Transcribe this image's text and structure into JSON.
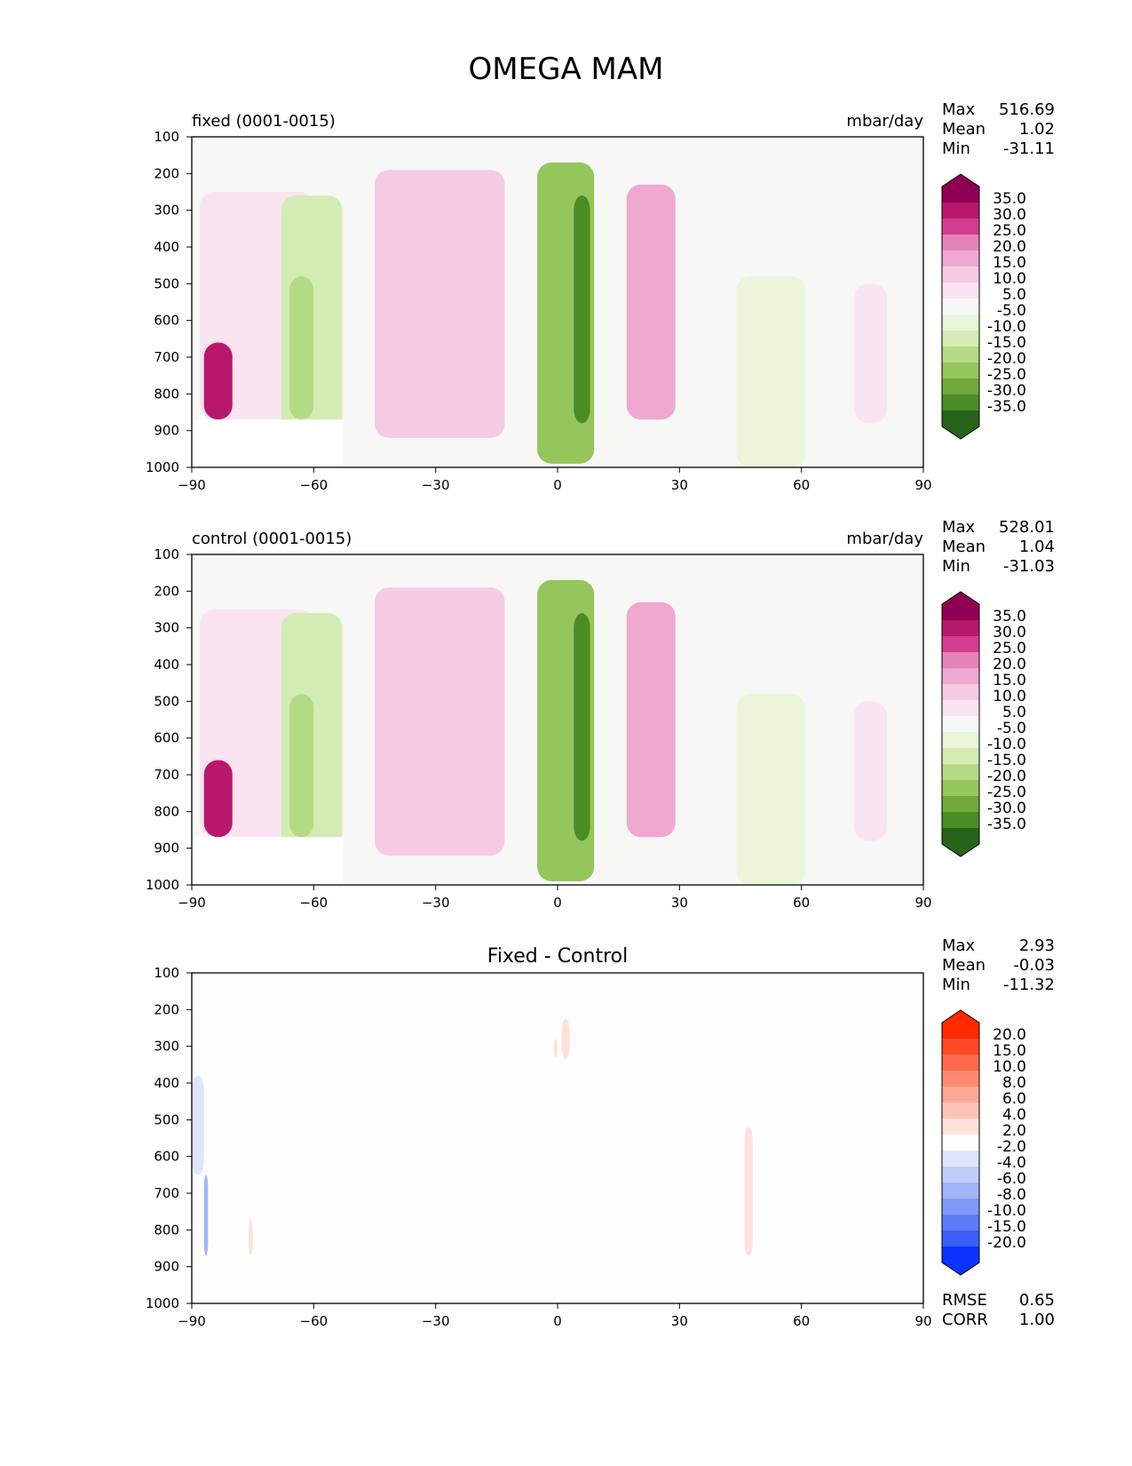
{
  "title": "OMEGA MAM",
  "chart_data": [
    {
      "type": "heatmap",
      "title_left": "fixed (0001-0015)",
      "title_right": "mbar/day",
      "title_center": "",
      "xlim": [
        -90,
        90
      ],
      "ylim": [
        1000,
        100
      ],
      "xticks": [
        "−90",
        "−60",
        "−30",
        "0",
        "30",
        "60",
        "90"
      ],
      "yticks": [
        "100",
        "200",
        "300",
        "400",
        "500",
        "600",
        "700",
        "800",
        "900",
        "1000"
      ],
      "stats": [
        {
          "label": "Max",
          "value": "516.69"
        },
        {
          "label": "Mean",
          "value": "1.02"
        },
        {
          "label": "Min",
          "value": "-31.11"
        }
      ],
      "colorbar_labels": [
        "35.0",
        "30.0",
        "25.0",
        "20.0",
        "15.0",
        "10.0",
        "5.0",
        "-5.0",
        "-10.0",
        "-15.0",
        "-20.0",
        "-25.0",
        "-30.0",
        "-35.0"
      ],
      "colorbar_colors": [
        "#8e0152",
        "#b8186b",
        "#d23d8f",
        "#e483b6",
        "#efa8d0",
        "#f6cbe4",
        "#fae4f0",
        "#f7f7f7",
        "#eaf5da",
        "#d4ecb4",
        "#b5da85",
        "#94c65c",
        "#6fa93a",
        "#4d8b26",
        "#276419"
      ],
      "features": [
        {
          "kind": "positive",
          "level": 1,
          "lon": [
            -88,
            -60
          ],
          "p": [
            250,
            870
          ]
        },
        {
          "kind": "positive",
          "level": 6,
          "lon": [
            -87,
            -80
          ],
          "p": [
            660,
            870
          ]
        },
        {
          "kind": "positive",
          "level": 2,
          "lon": [
            -45,
            -13
          ],
          "p": [
            190,
            920
          ]
        },
        {
          "kind": "positive",
          "level": 3,
          "lon": [
            17,
            29
          ],
          "p": [
            230,
            870
          ]
        },
        {
          "kind": "negative",
          "level": 2,
          "lon": [
            -68,
            -53
          ],
          "p": [
            260,
            1000
          ]
        },
        {
          "kind": "negative",
          "level": 3,
          "lon": [
            -66,
            -60
          ],
          "p": [
            480,
            870
          ]
        },
        {
          "kind": "negative",
          "level": 4,
          "lon": [
            -5,
            9
          ],
          "p": [
            170,
            990
          ]
        },
        {
          "kind": "negative",
          "level": 6,
          "lon": [
            4,
            8
          ],
          "p": [
            260,
            880
          ]
        },
        {
          "kind": "negative",
          "level": 1,
          "lon": [
            44,
            61
          ],
          "p": [
            480,
            1000
          ]
        },
        {
          "kind": "positive",
          "level": 1,
          "lon": [
            73,
            81
          ],
          "p": [
            500,
            880
          ]
        }
      ]
    },
    {
      "type": "heatmap",
      "title_left": "control (0001-0015)",
      "title_right": "mbar/day",
      "title_center": "",
      "xlim": [
        -90,
        90
      ],
      "ylim": [
        1000,
        100
      ],
      "xticks": [
        "−90",
        "−60",
        "−30",
        "0",
        "30",
        "60",
        "90"
      ],
      "yticks": [
        "100",
        "200",
        "300",
        "400",
        "500",
        "600",
        "700",
        "800",
        "900",
        "1000"
      ],
      "stats": [
        {
          "label": "Max",
          "value": "528.01"
        },
        {
          "label": "Mean",
          "value": "1.04"
        },
        {
          "label": "Min",
          "value": "-31.03"
        }
      ],
      "colorbar_labels": [
        "35.0",
        "30.0",
        "25.0",
        "20.0",
        "15.0",
        "10.0",
        "5.0",
        "-5.0",
        "-10.0",
        "-15.0",
        "-20.0",
        "-25.0",
        "-30.0",
        "-35.0"
      ],
      "colorbar_colors": [
        "#8e0152",
        "#b8186b",
        "#d23d8f",
        "#e483b6",
        "#efa8d0",
        "#f6cbe4",
        "#fae4f0",
        "#f7f7f7",
        "#eaf5da",
        "#d4ecb4",
        "#b5da85",
        "#94c65c",
        "#6fa93a",
        "#4d8b26",
        "#276419"
      ],
      "features": [
        {
          "kind": "positive",
          "level": 1,
          "lon": [
            -88,
            -60
          ],
          "p": [
            250,
            870
          ]
        },
        {
          "kind": "positive",
          "level": 6,
          "lon": [
            -87,
            -80
          ],
          "p": [
            660,
            870
          ]
        },
        {
          "kind": "positive",
          "level": 2,
          "lon": [
            -45,
            -13
          ],
          "p": [
            190,
            920
          ]
        },
        {
          "kind": "positive",
          "level": 3,
          "lon": [
            17,
            29
          ],
          "p": [
            230,
            870
          ]
        },
        {
          "kind": "negative",
          "level": 2,
          "lon": [
            -68,
            -53
          ],
          "p": [
            260,
            1000
          ]
        },
        {
          "kind": "negative",
          "level": 3,
          "lon": [
            -66,
            -60
          ],
          "p": [
            480,
            870
          ]
        },
        {
          "kind": "negative",
          "level": 4,
          "lon": [
            -5,
            9
          ],
          "p": [
            170,
            990
          ]
        },
        {
          "kind": "negative",
          "level": 6,
          "lon": [
            4,
            8
          ],
          "p": [
            260,
            880
          ]
        },
        {
          "kind": "negative",
          "level": 1,
          "lon": [
            44,
            61
          ],
          "p": [
            480,
            1000
          ]
        },
        {
          "kind": "positive",
          "level": 1,
          "lon": [
            73,
            81
          ],
          "p": [
            500,
            880
          ]
        }
      ]
    },
    {
      "type": "heatmap",
      "title_left": "",
      "title_right": "",
      "title_center": "Fixed - Control",
      "xlim": [
        -90,
        90
      ],
      "ylim": [
        1000,
        100
      ],
      "xticks": [
        "−90",
        "−60",
        "−30",
        "0",
        "30",
        "60",
        "90"
      ],
      "yticks": [
        "100",
        "200",
        "300",
        "400",
        "500",
        "600",
        "700",
        "800",
        "900",
        "1000"
      ],
      "stats": [
        {
          "label": "Max",
          "value": "2.93"
        },
        {
          "label": "Mean",
          "value": "-0.03"
        },
        {
          "label": "Min",
          "value": "-11.32"
        }
      ],
      "extra_stats": [
        {
          "label": "RMSE",
          "value": "0.65"
        },
        {
          "label": "CORR",
          "value": "1.00"
        }
      ],
      "colorbar_labels": [
        "20.0",
        "15.0",
        "10.0",
        "8.0",
        "6.0",
        "4.0",
        "2.0",
        "-2.0",
        "-4.0",
        "-6.0",
        "-8.0",
        "-10.0",
        "-15.0",
        "-20.0"
      ],
      "colorbar_colors": [
        "#ff2a00",
        "#ff4a26",
        "#ff6a4a",
        "#ff8a70",
        "#ffa898",
        "#ffc4b8",
        "#fee2da",
        "#ffffff",
        "#dfe6fb",
        "#c0cdf9",
        "#a1b4f7",
        "#8199f6",
        "#5f7df7",
        "#3c5ff9",
        "#0a33ff"
      ],
      "features": [
        {
          "kind": "negative",
          "level": 1,
          "lon": [
            -90,
            -87
          ],
          "p": [
            380,
            650
          ]
        },
        {
          "kind": "negative",
          "level": 3,
          "lon": [
            -87,
            -86
          ],
          "p": [
            650,
            870
          ]
        },
        {
          "kind": "positive",
          "level": 1,
          "lon": [
            1,
            3
          ],
          "p": [
            225,
            335
          ]
        },
        {
          "kind": "positive",
          "level": 1,
          "lon": [
            -1,
            0
          ],
          "p": [
            280,
            330
          ]
        },
        {
          "kind": "positive",
          "level": 1,
          "lon": [
            46,
            48
          ],
          "p": [
            520,
            870
          ]
        },
        {
          "kind": "positive",
          "level": 1,
          "lon": [
            -76,
            -75
          ],
          "p": [
            770,
            870
          ]
        }
      ]
    }
  ]
}
